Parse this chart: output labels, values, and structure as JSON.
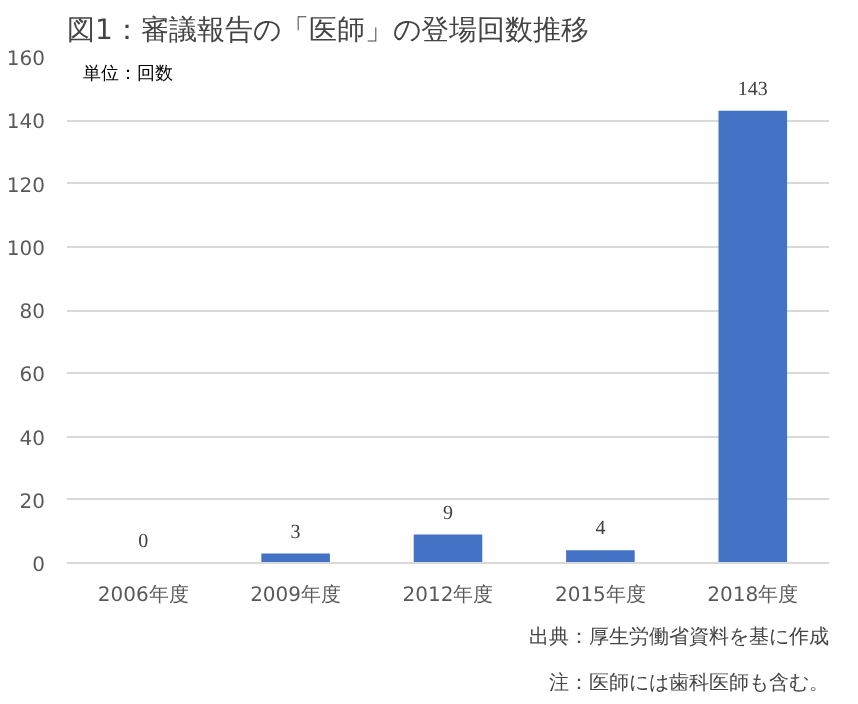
{
  "chart_data": {
    "type": "bar",
    "title": "図1：審議報告の「医師」の登場回数推移",
    "categories": [
      "2006年度",
      "2009年度",
      "2012年度",
      "2015年度",
      "2018年度"
    ],
    "values": [
      0,
      3,
      9,
      4,
      143
    ],
    "color": "#4472c4",
    "ylim": [
      0,
      160
    ],
    "yticks": [
      0,
      20,
      40,
      60,
      80,
      100,
      120,
      140,
      160
    ],
    "grid": "y",
    "data_labels": true,
    "annotations": [
      "単位：回数",
      "出典：厚生労働省資料を基に作成",
      "注：医師には歯科医師も含む。"
    ]
  }
}
